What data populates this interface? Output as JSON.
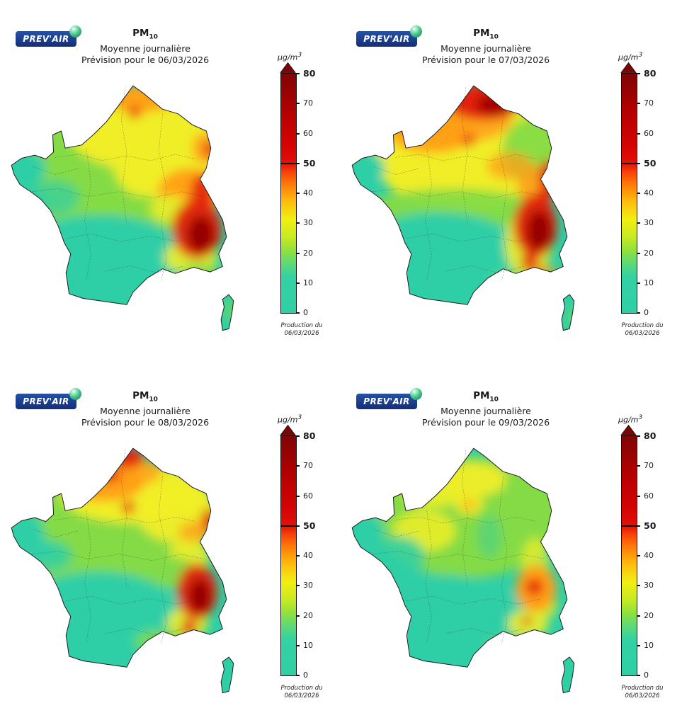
{
  "logo": {
    "text": "PREV'AIR"
  },
  "colors": {
    "teal": "#2fcfa6",
    "green": "#84db44",
    "ygreen": "#c9ea22",
    "yellow": "#f0ee28",
    "orange": "#ff9e18",
    "red": "#e32109",
    "darkred": "#970000"
  },
  "colorbar": {
    "unit_prefix": "µg/m",
    "unit_sup": "3",
    "min": 0,
    "max": 80,
    "threshold": 50,
    "ticks": [
      0,
      10,
      20,
      30,
      40,
      50,
      60,
      70,
      80
    ],
    "bold_ticks": [
      50,
      80
    ],
    "arrow_color": "#7e0404",
    "gradient": [
      {
        "p": 0,
        "c": "#2fcfa6"
      },
      {
        "p": 15,
        "c": "#33d1a4"
      },
      {
        "p": 21,
        "c": "#5fda74"
      },
      {
        "p": 26,
        "c": "#8fe13c"
      },
      {
        "p": 32,
        "c": "#c9ea22"
      },
      {
        "p": 39,
        "c": "#f2ef12"
      },
      {
        "p": 47,
        "c": "#ffb90e"
      },
      {
        "p": 54,
        "c": "#ff7808"
      },
      {
        "p": 59,
        "c": "#f4420a"
      },
      {
        "p": 62.5,
        "c": "#e41008"
      },
      {
        "p": 70,
        "c": "#d40404"
      },
      {
        "p": 82,
        "c": "#bb0000"
      },
      {
        "p": 100,
        "c": "#7e0404"
      }
    ]
  },
  "production": {
    "line1": "Production du",
    "line2": "06/03/2026"
  },
  "panels": [
    {
      "pollutant": "PM",
      "pollutant_sub": "10",
      "subtitle": "Moyenne journalière",
      "forecast": "Prévision pour le 06/03/2026",
      "map": {
        "base": "teal",
        "blobs": [
          [
            140,
            110,
            120,
            72,
            "green",
            1
          ],
          [
            170,
            70,
            95,
            50,
            "yellow",
            1
          ],
          [
            205,
            115,
            72,
            48,
            "yellow",
            1
          ],
          [
            168,
            28,
            45,
            18,
            "orange",
            0.95
          ],
          [
            160,
            46,
            9,
            8,
            "red",
            0.75
          ],
          [
            250,
            92,
            16,
            20,
            "orange",
            0.9
          ],
          [
            257,
            94,
            8,
            11,
            "red",
            0.85
          ],
          [
            230,
            150,
            40,
            32,
            "orange",
            0.95
          ],
          [
            247,
            150,
            15,
            26,
            "red",
            0.9
          ],
          [
            135,
            178,
            115,
            26,
            "green",
            0.9
          ],
          [
            115,
            252,
            125,
            75,
            "teal",
            1
          ],
          [
            16,
            118,
            30,
            24,
            "teal",
            1
          ],
          [
            55,
            155,
            35,
            22,
            "teal",
            0.7
          ],
          [
            205,
            170,
            25,
            18,
            "yellow",
            0.85
          ],
          [
            232,
            232,
            34,
            22,
            "yellow",
            0.9
          ],
          [
            245,
            252,
            25,
            12,
            "green",
            0.85
          ],
          [
            240,
            196,
            32,
            38,
            "red",
            0.95
          ],
          [
            245,
            203,
            17,
            24,
            "darkred",
            1
          ],
          [
            283,
            300,
            5,
            16,
            "green",
            0.9
          ]
        ]
      }
    },
    {
      "pollutant": "PM",
      "pollutant_sub": "10",
      "subtitle": "Moyenne journalière",
      "forecast": "Prévision pour le 07/03/2026",
      "map": {
        "base": "teal",
        "blobs": [
          [
            150,
            100,
            120,
            75,
            "yellow",
            1
          ],
          [
            240,
            95,
            45,
            45,
            "green",
            0.95
          ],
          [
            105,
            72,
            55,
            26,
            "orange",
            0.95
          ],
          [
            152,
            55,
            55,
            28,
            "orange",
            0.9
          ],
          [
            172,
            32,
            48,
            24,
            "red",
            1
          ],
          [
            185,
            36,
            24,
            13,
            "darkred",
            0.85
          ],
          [
            152,
            82,
            8,
            8,
            "red",
            0.8
          ],
          [
            205,
            115,
            30,
            18,
            "orange",
            0.75
          ],
          [
            238,
            142,
            24,
            26,
            "orange",
            0.9
          ],
          [
            253,
            132,
            11,
            26,
            "red",
            0.9
          ],
          [
            244,
            165,
            13,
            18,
            "red",
            0.85
          ],
          [
            130,
            172,
            115,
            28,
            "green",
            0.95
          ],
          [
            113,
            252,
            125,
            78,
            "teal",
            1
          ],
          [
            16,
            118,
            28,
            22,
            "teal",
            1
          ],
          [
            228,
            215,
            30,
            42,
            "yellow",
            0.9
          ],
          [
            245,
            252,
            20,
            10,
            "orange",
            0.8
          ],
          [
            210,
            265,
            30,
            14,
            "green",
            0.8
          ],
          [
            237,
            192,
            28,
            40,
            "red",
            0.95
          ],
          [
            242,
            198,
            16,
            26,
            "darkred",
            1
          ],
          [
            230,
            238,
            11,
            12,
            "red",
            0.85
          ],
          [
            286,
            310,
            5,
            16,
            "green",
            0.8
          ]
        ]
      }
    },
    {
      "pollutant": "PM",
      "pollutant_sub": "10",
      "subtitle": "Moyenne journalière",
      "forecast": "Prévision pour le 08/03/2026",
      "map": {
        "base": "teal",
        "blobs": [
          [
            150,
            100,
            115,
            68,
            "green",
            1
          ],
          [
            160,
            70,
            95,
            38,
            "yellow",
            1
          ],
          [
            120,
            58,
            52,
            22,
            "orange",
            0.95
          ],
          [
            155,
            42,
            40,
            18,
            "orange",
            0.85
          ],
          [
            152,
            24,
            20,
            14,
            "red",
            0.95
          ],
          [
            128,
            46,
            13,
            10,
            "red",
            0.9
          ],
          [
            152,
            88,
            9,
            8,
            "red",
            0.8
          ],
          [
            215,
            95,
            52,
            38,
            "yellow",
            0.95
          ],
          [
            237,
            120,
            20,
            14,
            "orange",
            0.8
          ],
          [
            255,
            104,
            9,
            15,
            "red",
            0.9
          ],
          [
            230,
            150,
            26,
            20,
            "yellow",
            0.9
          ],
          [
            132,
            170,
            110,
            28,
            "green",
            0.95
          ],
          [
            113,
            250,
            125,
            80,
            "teal",
            1
          ],
          [
            16,
            118,
            28,
            22,
            "teal",
            1
          ],
          [
            50,
            150,
            30,
            20,
            "teal",
            0.8
          ],
          [
            228,
            236,
            26,
            20,
            "yellow",
            0.9
          ],
          [
            195,
            260,
            35,
            15,
            "green",
            0.8
          ],
          [
            240,
            196,
            26,
            36,
            "red",
            0.95
          ],
          [
            244,
            202,
            14,
            22,
            "darkred",
            1
          ],
          [
            230,
            242,
            10,
            10,
            "red",
            0.9
          ]
        ]
      }
    },
    {
      "pollutant": "PM",
      "pollutant_sub": "10",
      "subtitle": "Moyenne journalière",
      "forecast": "Prévision pour le 09/03/2026",
      "map": {
        "base": "teal",
        "blobs": [
          [
            150,
            100,
            120,
            78,
            "green",
            1
          ],
          [
            105,
            68,
            38,
            20,
            "yellow",
            0.9
          ],
          [
            158,
            52,
            42,
            22,
            "yellow",
            0.95
          ],
          [
            95,
            118,
            40,
            26,
            "yellow",
            0.85
          ],
          [
            152,
            84,
            18,
            13,
            "yellow",
            1
          ],
          [
            152,
            84,
            7,
            6,
            "orange",
            0.95
          ],
          [
            178,
            125,
            16,
            28,
            "teal",
            0.45
          ],
          [
            113,
            252,
            125,
            78,
            "teal",
            1
          ],
          [
            16,
            118,
            28,
            22,
            "teal",
            1
          ],
          [
            60,
            150,
            35,
            25,
            "teal",
            0.85
          ],
          [
            237,
            162,
            18,
            35,
            "yellow",
            0.75
          ],
          [
            250,
            215,
            15,
            15,
            "yellow",
            0.8
          ],
          [
            228,
            237,
            26,
            18,
            "yellow",
            0.9
          ],
          [
            238,
            192,
            26,
            30,
            "orange",
            1
          ],
          [
            236,
            190,
            11,
            11,
            "red",
            0.95
          ],
          [
            226,
            234,
            6,
            6,
            "red",
            0.9
          ],
          [
            205,
            268,
            30,
            12,
            "green",
            0.8
          ]
        ]
      }
    }
  ]
}
